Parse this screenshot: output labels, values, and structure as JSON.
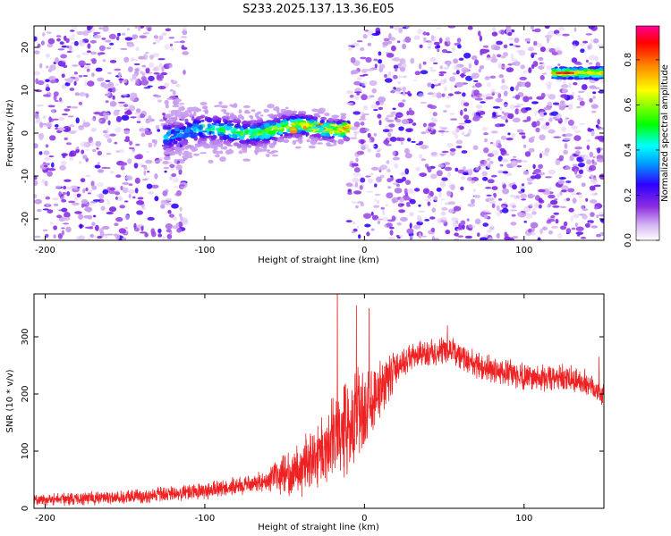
{
  "title": "S233.2025.137.13.36.E05",
  "chart_data": [
    {
      "type": "heatmap",
      "xlabel": "Height of straight line (km)",
      "ylabel": "Frequency (Hz)",
      "xlim": [
        -207,
        150
      ],
      "ylim": [
        -25,
        25
      ],
      "x_ticks": [
        -200,
        -100,
        0,
        100
      ],
      "y_ticks": [
        -20,
        -10,
        0,
        10,
        20
      ],
      "colorbar": {
        "label": "Normalized spectral amplitude",
        "range": [
          0.0,
          0.95
        ],
        "ticks": [
          0.0,
          0.2,
          0.4,
          0.6,
          0.8
        ],
        "colormap": "white-violet-blue-cyan-green-yellow-red-magenta"
      },
      "features": [
        {
          "kind": "noise-field",
          "x_range": [
            -207,
            -112
          ],
          "freq_range": [
            -25,
            25
          ],
          "amplitude": 0.1
        },
        {
          "kind": "noise-field",
          "x_range": [
            -10,
            118
          ],
          "freq_range": [
            -25,
            25
          ],
          "amplitude": 0.1
        },
        {
          "kind": "noise-field",
          "x_range": [
            118,
            150
          ],
          "freq_range": [
            -25,
            25
          ],
          "amplitude": 0.08
        },
        {
          "kind": "band",
          "x_range": [
            -125,
            -10
          ],
          "freq_start": 0,
          "freq_end": 1.5,
          "peak_amplitude": 0.85
        },
        {
          "kind": "line",
          "x_range": [
            118,
            150
          ],
          "freq": 14,
          "peak_amplitude": 0.95
        }
      ]
    },
    {
      "type": "line",
      "xlabel": "Height of straight line (km)",
      "ylabel": "SNR (10 * v/v)",
      "xlim": [
        -207,
        150
      ],
      "ylim": [
        0,
        375
      ],
      "x_ticks": [
        -200,
        -100,
        0,
        100
      ],
      "y_ticks": [
        0,
        100,
        200,
        300
      ],
      "series": [
        {
          "color": "#ee2222",
          "trend": {
            "x": [
              -207,
              -180,
              -150,
              -120,
              -100,
              -80,
              -60,
              -40,
              -30,
              -20,
              -10,
              0,
              10,
              20,
              30,
              40,
              55,
              70,
              90,
              110,
              130,
              140,
              150
            ],
            "y": [
              15,
              17,
              20,
              25,
              30,
              38,
              50,
              70,
              95,
              120,
              150,
              170,
              210,
              245,
              265,
              270,
              275,
              250,
              235,
              228,
              225,
              218,
              200
            ]
          },
          "peaks": [
            {
              "x": -17,
              "y": 375
            },
            {
              "x": -5,
              "y": 355
            },
            {
              "x": 3,
              "y": 350
            },
            {
              "x": 52,
              "y": 320
            },
            {
              "x": 147,
              "y": 265
            }
          ]
        }
      ]
    }
  ]
}
